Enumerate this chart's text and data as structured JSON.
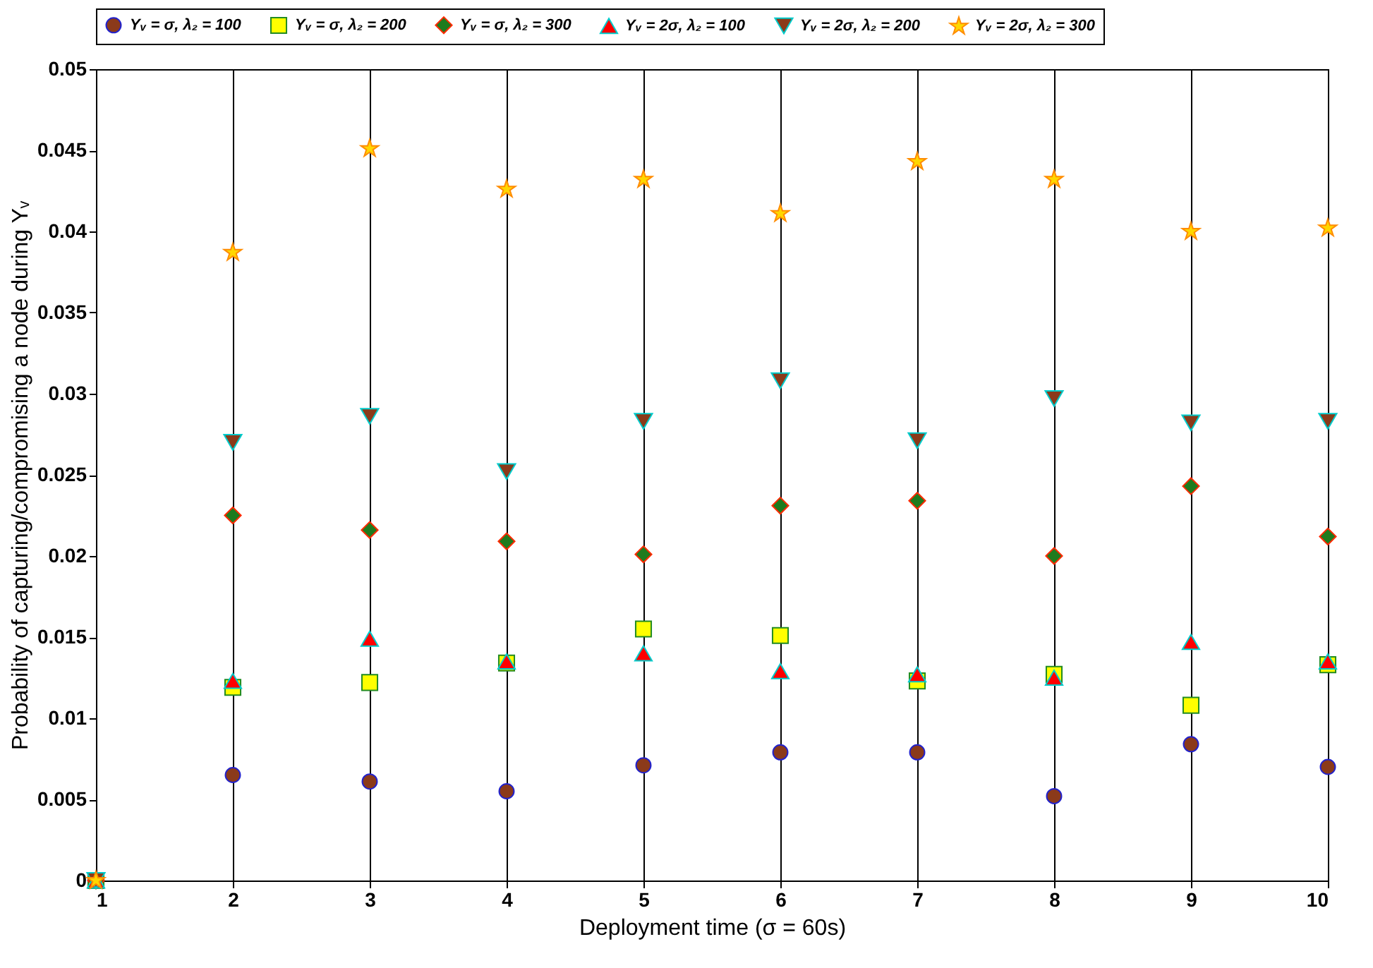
{
  "chart_data": {
    "type": "scatter",
    "xlabel": "Deployment time (σ = 60s)",
    "ylabel": "Probability of capturing/compromising a node during  Yᵥ",
    "x": [
      1,
      2,
      3,
      4,
      5,
      6,
      7,
      8,
      9,
      10
    ],
    "xlim": [
      1,
      10
    ],
    "xticks": [
      1,
      2,
      3,
      4,
      5,
      6,
      7,
      8,
      9,
      10
    ],
    "ylim": [
      0,
      0.05
    ],
    "yticks": [
      0,
      0.005,
      0.01,
      0.015,
      0.02,
      0.025,
      0.03,
      0.035,
      0.04,
      0.045,
      0.05
    ],
    "grid": "x",
    "legend": "top",
    "series": [
      {
        "name": "Yᵥ = σ, λ₂ = 100",
        "color": "#8b3a1a",
        "marker": "circle",
        "values": [
          null,
          0.0065,
          0.0061,
          0.0055,
          0.0071,
          0.0079,
          0.0079,
          0.0052,
          0.0084,
          0.007
        ]
      },
      {
        "name": "Yᵥ = σ, λ₂ = 200",
        "color": "#ffff00",
        "marker": "square",
        "values": [
          0,
          0.0119,
          0.0122,
          0.0134,
          0.0155,
          0.0151,
          0.0123,
          0.0127,
          0.0108,
          0.0133
        ]
      },
      {
        "name": "Yᵥ = σ, λ₂ = 300",
        "color": "#1e7b1e",
        "marker": "diamond",
        "values": [
          0,
          0.0225,
          0.0216,
          0.0209,
          0.0201,
          0.0231,
          0.0234,
          0.02,
          0.0243,
          0.0212
        ]
      },
      {
        "name": "Yᵥ = 2σ, λ₂ = 100",
        "color": "#ff0000",
        "marker": "triangle",
        "values": [
          0,
          0.0123,
          0.0149,
          0.0135,
          0.014,
          0.0129,
          0.0127,
          0.0125,
          0.0147,
          0.0135
        ]
      },
      {
        "name": "Yᵥ = 2σ, λ₂ = 200",
        "color": "#8b3a1a",
        "marker": "triangle_down",
        "values": [
          0,
          0.027,
          0.0286,
          0.0252,
          0.0283,
          0.0308,
          0.0271,
          0.0297,
          0.0282,
          0.0283
        ]
      },
      {
        "name": "Yᵥ = 2σ, λ₂ = 300",
        "color": "#ffd700",
        "marker": "star",
        "values": [
          0,
          0.0387,
          0.0451,
          0.0426,
          0.0432,
          0.0411,
          0.0443,
          0.0432,
          0.04,
          0.0402
        ]
      }
    ]
  }
}
